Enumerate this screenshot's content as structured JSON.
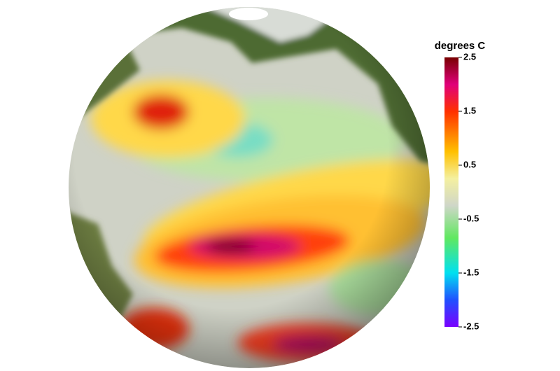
{
  "colorbar": {
    "title": "degrees C",
    "lim": [
      -2.5,
      2.5
    ],
    "ticks": [
      2.5,
      1.5,
      0.5,
      -0.5,
      -1.5,
      -2.5
    ]
  }
}
